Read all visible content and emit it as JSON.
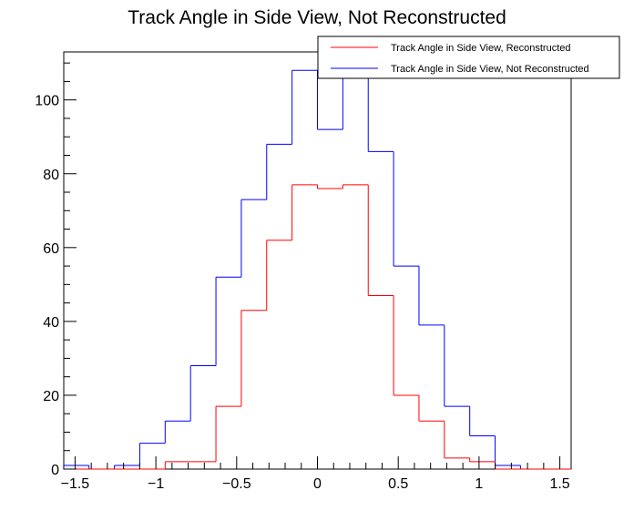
{
  "chart_data": {
    "type": "histogram",
    "title": "Track Angle in Side View, Not Reconstructed",
    "xlabel": "",
    "ylabel": "",
    "xlim": [
      -1.57,
      1.57
    ],
    "ylim": [
      0,
      113
    ],
    "x_ticks": [
      -1.5,
      -1,
      -0.5,
      0,
      0.5,
      1,
      1.5
    ],
    "x_tick_labels": [
      "−1.5",
      "−1",
      "−0.5",
      "0",
      "0.5",
      "1",
      "1.5"
    ],
    "y_ticks": [
      0,
      20,
      40,
      60,
      80,
      100
    ],
    "y_tick_labels": [
      "0",
      "20",
      "40",
      "60",
      "80",
      "100"
    ],
    "bin_edges": [
      -1.5708,
      -1.4137,
      -1.2566,
      -1.0996,
      -0.9425,
      -0.7854,
      -0.6283,
      -0.4712,
      -0.3142,
      -0.1571,
      0.0,
      0.1571,
      0.3142,
      0.4712,
      0.6283,
      0.7854,
      0.9425,
      1.0996,
      1.2566,
      1.4137,
      1.5708
    ],
    "series": [
      {
        "name": "Track Angle in Side View, Reconstructed",
        "color": "#ff0000",
        "values": [
          0,
          0,
          0,
          0,
          2,
          2,
          17,
          43,
          62,
          77,
          76,
          77,
          47,
          20,
          13,
          3,
          2,
          0,
          0,
          0
        ]
      },
      {
        "name": "Track Angle in Side View, Not Reconstructed",
        "color": "#0000ff",
        "values": [
          1,
          0,
          1,
          7,
          13,
          28,
          52,
          73,
          88,
          108,
          92,
          110,
          86,
          55,
          39,
          17,
          9,
          1,
          0,
          0
        ]
      }
    ],
    "legend_position": "top-right",
    "grid": false
  }
}
